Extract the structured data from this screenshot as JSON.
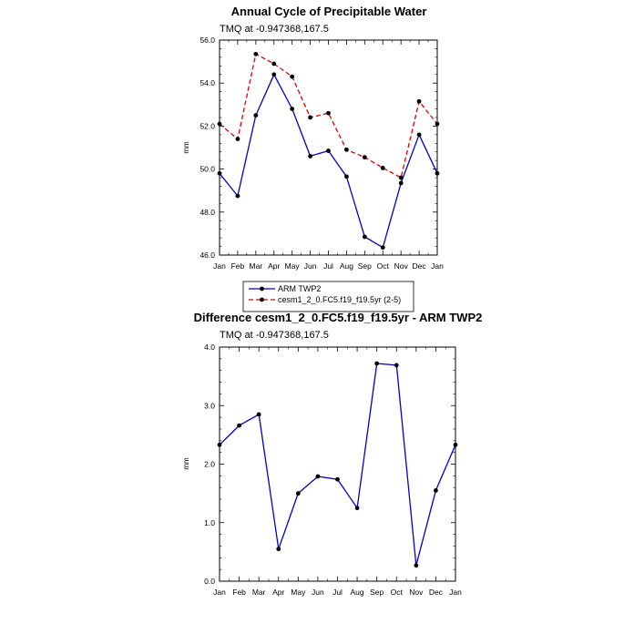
{
  "chart_data": [
    {
      "type": "line",
      "title": "Annual Cycle of Precipitable Water",
      "subtitle": "TMQ at -0.947368,167.5",
      "xlabel": "",
      "ylabel": "mm",
      "categories": [
        "Jan",
        "Feb",
        "Mar",
        "Apr",
        "May",
        "Jun",
        "Jul",
        "Aug",
        "Sep",
        "Oct",
        "Nov",
        "Dec",
        "Jan"
      ],
      "ylim": [
        46.0,
        56.0
      ],
      "yticks": [
        46.0,
        48.0,
        50.0,
        52.0,
        54.0,
        56.0
      ],
      "grid": false,
      "legend_position": "bottom",
      "series": [
        {
          "name": "ARM TWP2",
          "color": "#0000cc",
          "line_style": "solid",
          "values": [
            49.8,
            48.75,
            52.5,
            54.4,
            52.8,
            50.6,
            50.85,
            49.65,
            46.85,
            46.35,
            49.35,
            51.6,
            49.8
          ]
        },
        {
          "name": "cesm1_2_0.FC5.f19_f19.5yr (2-5)",
          "color": "#dd0000",
          "line_style": "dashed",
          "values": [
            52.1,
            51.4,
            55.35,
            54.9,
            54.3,
            52.4,
            52.6,
            50.9,
            50.55,
            50.05,
            49.6,
            53.15,
            52.1
          ]
        }
      ]
    },
    {
      "type": "line",
      "title": "Difference cesm1_2_0.FC5.f19_f19.5yr - ARM TWP2",
      "subtitle": "TMQ at -0.947368,167.5",
      "xlabel": "",
      "ylabel": "mm",
      "categories": [
        "Jan",
        "Feb",
        "Mar",
        "Apr",
        "May",
        "Jun",
        "Jul",
        "Aug",
        "Sep",
        "Oct",
        "Nov",
        "Dec",
        "Jan"
      ],
      "ylim": [
        0.0,
        4.0
      ],
      "yticks": [
        0.0,
        1.0,
        2.0,
        3.0,
        4.0
      ],
      "grid": false,
      "series": [
        {
          "color": "#0000cc",
          "line_style": "solid",
          "values": [
            2.33,
            2.66,
            2.85,
            0.55,
            1.5,
            1.79,
            1.74,
            1.25,
            3.72,
            3.69,
            0.27,
            1.55,
            2.33
          ]
        }
      ]
    }
  ]
}
